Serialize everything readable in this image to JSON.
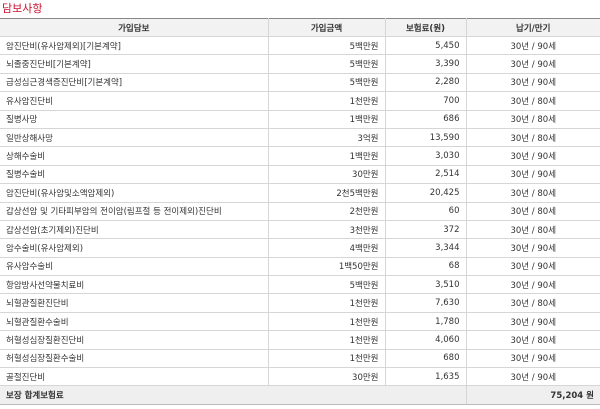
{
  "title": "담보사항",
  "table": {
    "header": [
      "가입담보",
      "가입금액",
      "보험료(원)",
      "납기/만기"
    ],
    "rows": [
      [
        "암진단비(유사암제외)[기본계약]",
        "5백만원",
        "5,450",
        "30년 / 90세"
      ],
      [
        "뇌졸중진단비[기본계약]",
        "5백만원",
        "3,390",
        "30년 / 90세"
      ],
      [
        "급성심근경색증진단비[기본계약]",
        "5백만원",
        "2,280",
        "30년 / 90세"
      ],
      [
        "유사암진단비",
        "1천만원",
        "700",
        "30년 / 80세"
      ],
      [
        "질병사망",
        "1백만원",
        "686",
        "30년 / 80세"
      ],
      [
        "일반상해사망",
        "3억원",
        "13,590",
        "30년 / 80세"
      ],
      [
        "상해수술비",
        "1백만원",
        "3,030",
        "30년 / 90세"
      ],
      [
        "질병수술비",
        "30만원",
        "2,514",
        "30년 / 90세"
      ],
      [
        "암진단비(유사암및소액암제외)",
        "2천5백만원",
        "20,425",
        "30년 / 80세"
      ],
      [
        "갑상선암 및 기타피부암의 전이암(림프절 등 전이제외)진단비",
        "2천만원",
        "60",
        "30년 / 80세"
      ],
      [
        "갑상선암(초기제외)진단비",
        "3천만원",
        "372",
        "30년 / 80세"
      ],
      [
        "암수술비(유사암제외)",
        "4백만원",
        "3,344",
        "30년 / 90세"
      ],
      [
        "유사암수술비",
        "1백50만원",
        "68",
        "30년 / 90세"
      ],
      [
        "항암방사선약물치료비",
        "5백만원",
        "3,510",
        "30년 / 90세"
      ],
      [
        "뇌혈관질환진단비",
        "1천만원",
        "7,630",
        "30년 / 80세"
      ],
      [
        "뇌혈관질환수술비",
        "1천만원",
        "1,780",
        "30년 / 90세"
      ],
      [
        "허혈성심장질환진단비",
        "1천만원",
        "4,060",
        "30년 / 80세"
      ],
      [
        "허혈성심장질환수술비",
        "1천만원",
        "680",
        "30년 / 90세"
      ],
      [
        "골절진단비",
        "30만원",
        "1,635",
        "30년 / 90세"
      ]
    ],
    "footer": {
      "label": "보장 합계보험료",
      "total": "75,204 원"
    }
  }
}
